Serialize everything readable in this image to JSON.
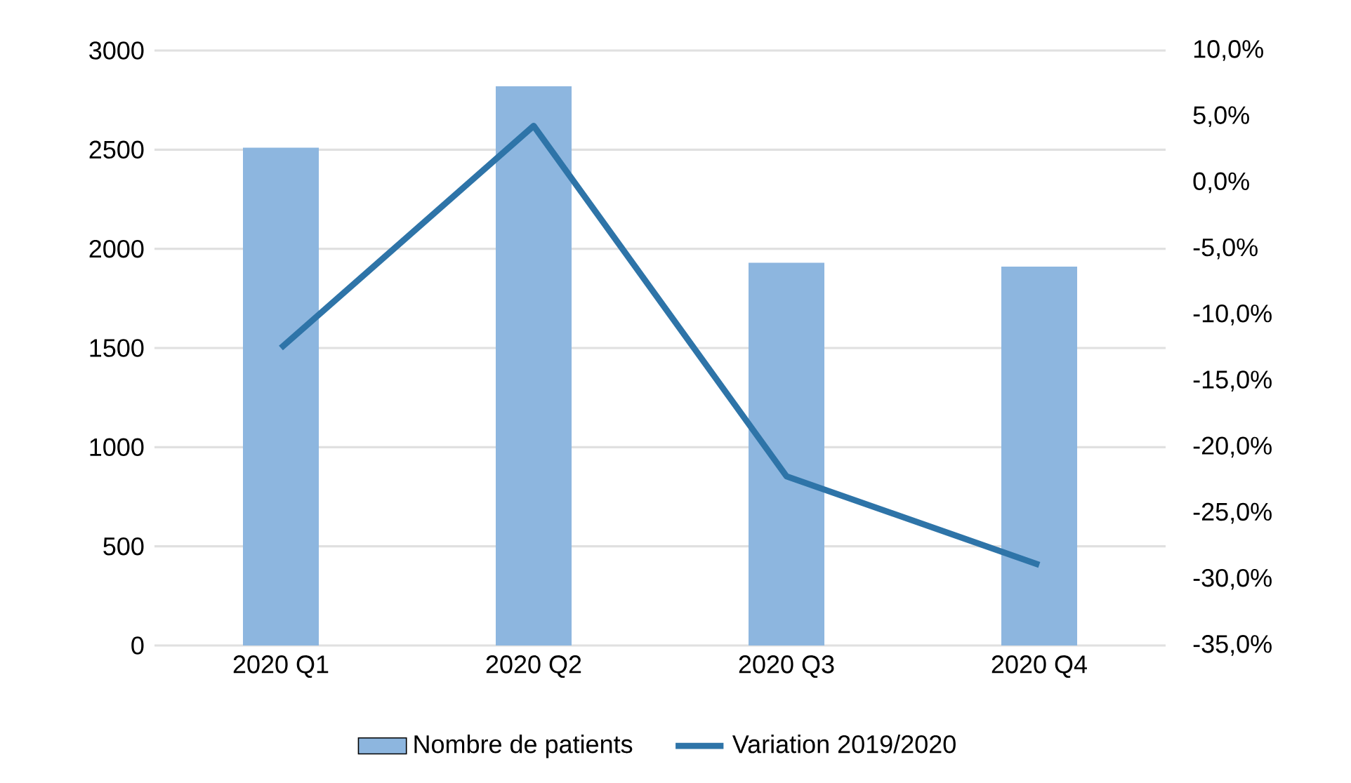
{
  "chart_data": {
    "type": "bar",
    "categories": [
      "2020 Q1",
      "2020 Q2",
      "2020 Q3",
      "2020 Q4"
    ],
    "series": [
      {
        "name": "Nombre de patients",
        "color": "#8db6df",
        "values": [
          2510,
          2820,
          1930,
          1910
        ]
      },
      {
        "name": "Variation 2019/2020",
        "type": "line",
        "axis": "y2",
        "color": "#2e74a8",
        "values": [
          -12.5,
          4.3,
          -22.2,
          -28.9
        ]
      }
    ],
    "ylim": [
      0,
      3000
    ],
    "yticks": [
      0,
      500,
      1000,
      1500,
      2000,
      2500,
      3000
    ],
    "y2lim": [
      -35,
      10
    ],
    "y2ticks": [
      {
        "value": -35,
        "label": "-35,0%"
      },
      {
        "value": -30,
        "label": "-30,0%"
      },
      {
        "value": -25,
        "label": "-25,0%"
      },
      {
        "value": -20,
        "label": "-20,0%"
      },
      {
        "value": -15,
        "label": "-15,0%"
      },
      {
        "value": -10,
        "label": "-10,0%"
      },
      {
        "value": -5,
        "label": "-5,0%"
      },
      {
        "value": 0,
        "label": "0,0%"
      },
      {
        "value": 5,
        "label": "5,0%"
      },
      {
        "value": 10,
        "label": "10,0%"
      }
    ],
    "grid": "y",
    "legend": "bottom"
  }
}
